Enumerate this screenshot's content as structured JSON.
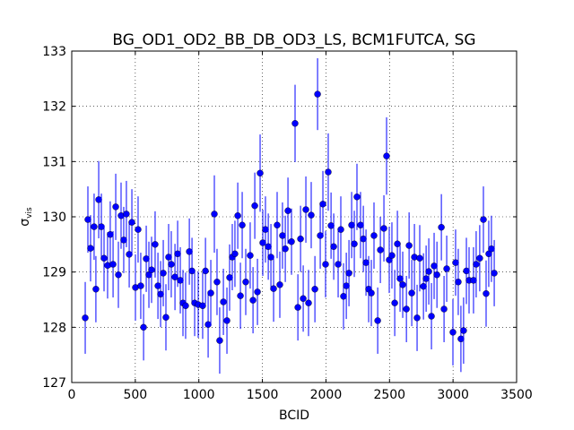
{
  "chart_data": {
    "type": "errorbar",
    "title": "BG_OD1_OD2_BB_DB_OD3_LS, BCM1FUTCA, SG",
    "xlabel": "BCID",
    "ylabel": {
      "symbol": "σ",
      "subscript": "vis"
    },
    "xlim": [
      0,
      3500
    ],
    "ylim": [
      127,
      133
    ],
    "xticks": [
      0,
      500,
      1000,
      1500,
      2000,
      2500,
      3000,
      3500
    ],
    "yticks": [
      127,
      128,
      129,
      130,
      131,
      132,
      133
    ],
    "grid": true,
    "color": "#0000ff",
    "x": [
      106,
      127,
      148,
      176,
      190,
      212,
      233,
      254,
      282,
      303,
      325,
      346,
      367,
      388,
      409,
      430,
      452,
      473,
      501,
      522,
      543,
      565,
      586,
      607,
      628,
      656,
      678,
      699,
      720,
      741,
      762,
      783,
      812,
      833,
      854,
      875,
      896,
      925,
      946,
      967,
      995,
      1030,
      1052,
      1073,
      1094,
      1122,
      1143,
      1164,
      1193,
      1221,
      1242,
      1263,
      1284,
      1306,
      1327,
      1341,
      1369,
      1404,
      1426,
      1440,
      1461,
      1482,
      1503,
      1524,
      1546,
      1567,
      1588,
      1616,
      1637,
      1658,
      1680,
      1701,
      1729,
      1757,
      1779,
      1800,
      1821,
      1842,
      1863,
      1884,
      1913,
      1934,
      1955,
      1976,
      1997,
      2018,
      2040,
      2061,
      2096,
      2117,
      2138,
      2160,
      2181,
      2202,
      2223,
      2244,
      2272,
      2294,
      2315,
      2336,
      2357,
      2378,
      2407,
      2428,
      2456,
      2477,
      2498,
      2519,
      2541,
      2562,
      2583,
      2604,
      2633,
      2654,
      2675,
      2696,
      2717,
      2738,
      2767,
      2788,
      2809,
      2830,
      2851,
      2873,
      2908,
      2929,
      2950,
      2999,
      3020,
      3041,
      3062,
      3083,
      3105,
      3126,
      3161,
      3182,
      3210,
      3239,
      3260,
      3281,
      3302,
      3324
    ],
    "values": [
      128.17,
      129.95,
      129.43,
      129.82,
      128.69,
      130.31,
      129.82,
      129.25,
      129.12,
      129.68,
      129.14,
      130.18,
      128.95,
      130.02,
      129.58,
      130.05,
      129.32,
      129.9,
      128.72,
      129.77,
      128.75,
      128.0,
      129.24,
      128.95,
      129.04,
      129.5,
      128.75,
      128.6,
      128.98,
      128.18,
      129.27,
      129.14,
      128.91,
      129.33,
      128.85,
      128.44,
      128.39,
      129.37,
      129.02,
      128.44,
      128.41,
      128.39,
      129.02,
      128.05,
      128.62,
      130.05,
      128.82,
      127.76,
      128.46,
      128.12,
      128.9,
      129.27,
      129.33,
      130.02,
      128.57,
      129.85,
      128.82,
      129.3,
      128.49,
      130.2,
      128.64,
      130.79,
      129.53,
      129.77,
      129.46,
      129.27,
      128.7,
      129.85,
      128.77,
      129.66,
      129.42,
      130.11,
      129.55,
      131.69,
      128.36,
      129.6,
      128.52,
      130.13,
      128.44,
      130.03,
      128.69,
      132.22,
      129.66,
      130.23,
      129.14,
      130.81,
      129.84,
      129.46,
      129.14,
      129.77,
      128.56,
      128.75,
      128.98,
      129.85,
      129.51,
      130.36,
      129.85,
      129.6,
      129.17,
      128.69,
      128.62,
      129.66,
      128.12,
      129.4,
      129.79,
      131.1,
      129.22,
      129.3,
      128.44,
      129.51,
      128.88,
      128.77,
      128.33,
      129.48,
      128.62,
      129.27,
      128.17,
      129.25,
      128.74,
      128.88,
      129.01,
      128.2,
      129.11,
      128.95,
      129.81,
      128.33,
      129.06,
      127.91,
      129.17,
      128.82,
      127.79,
      127.94,
      129.02,
      128.85,
      128.85,
      129.14,
      129.25,
      129.95,
      128.61,
      129.33,
      129.42,
      128.98
    ],
    "errors": [
      0.65,
      0.6,
      0.6,
      0.6,
      0.6,
      0.7,
      0.6,
      0.6,
      0.6,
      0.6,
      0.6,
      0.6,
      0.6,
      0.6,
      0.6,
      0.6,
      0.6,
      0.6,
      0.6,
      0.6,
      0.6,
      0.6,
      0.6,
      0.6,
      0.6,
      0.6,
      0.6,
      0.6,
      0.6,
      0.6,
      0.6,
      0.6,
      0.6,
      0.6,
      0.6,
      0.6,
      0.6,
      0.6,
      0.6,
      0.6,
      0.6,
      0.6,
      0.6,
      0.6,
      0.6,
      0.7,
      0.6,
      0.6,
      0.6,
      0.6,
      0.6,
      0.6,
      0.6,
      0.6,
      0.6,
      0.6,
      0.6,
      0.6,
      0.6,
      0.6,
      0.6,
      0.7,
      0.6,
      0.6,
      0.6,
      0.6,
      0.6,
      0.6,
      0.6,
      0.6,
      0.6,
      0.6,
      0.6,
      0.7,
      0.6,
      0.6,
      0.6,
      0.6,
      0.6,
      0.6,
      0.6,
      0.65,
      0.6,
      0.6,
      0.6,
      0.7,
      0.6,
      0.6,
      0.6,
      0.6,
      0.6,
      0.6,
      0.6,
      0.6,
      0.6,
      0.6,
      0.6,
      0.6,
      0.6,
      0.6,
      0.6,
      0.6,
      0.6,
      0.6,
      0.6,
      0.7,
      0.6,
      0.6,
      0.6,
      0.6,
      0.6,
      0.6,
      0.6,
      0.6,
      0.6,
      0.6,
      0.6,
      0.6,
      0.6,
      0.6,
      0.6,
      0.6,
      0.6,
      0.6,
      0.6,
      0.6,
      0.6,
      0.6,
      0.6,
      0.6,
      0.6,
      0.6,
      0.6,
      0.6,
      0.6,
      0.6,
      0.6,
      0.6,
      0.6,
      0.6,
      0.6,
      0.6
    ]
  }
}
